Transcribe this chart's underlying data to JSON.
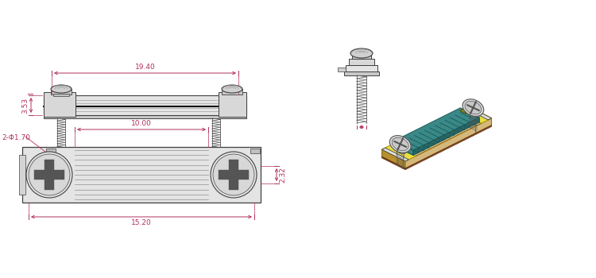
{
  "bg_color": "#ffffff",
  "dim_color": "#b03060",
  "line_color": "#404040",
  "gray_light": "#d8d8d8",
  "gray_mid": "#909090",
  "gray_dark": "#555555",
  "gray_fill": "#e4e4e4",
  "dim_19_40": "19.40",
  "dim_3_53": "3.53",
  "dim_10_00": "10.00",
  "dim_15_20": "15.20",
  "dim_2_phi_1_70": "2-Φ1.70",
  "dim_2_32": "2.32",
  "gold1": "#d4b87a",
  "gold2": "#c8a44a",
  "gold3": "#b89030",
  "teal1": "#3a8888",
  "teal2": "#1a5858",
  "yellow_bright": "#e8e040",
  "brown1": "#9a6040",
  "screw_gray": "#b8b8b8",
  "screw_dark": "#606060"
}
